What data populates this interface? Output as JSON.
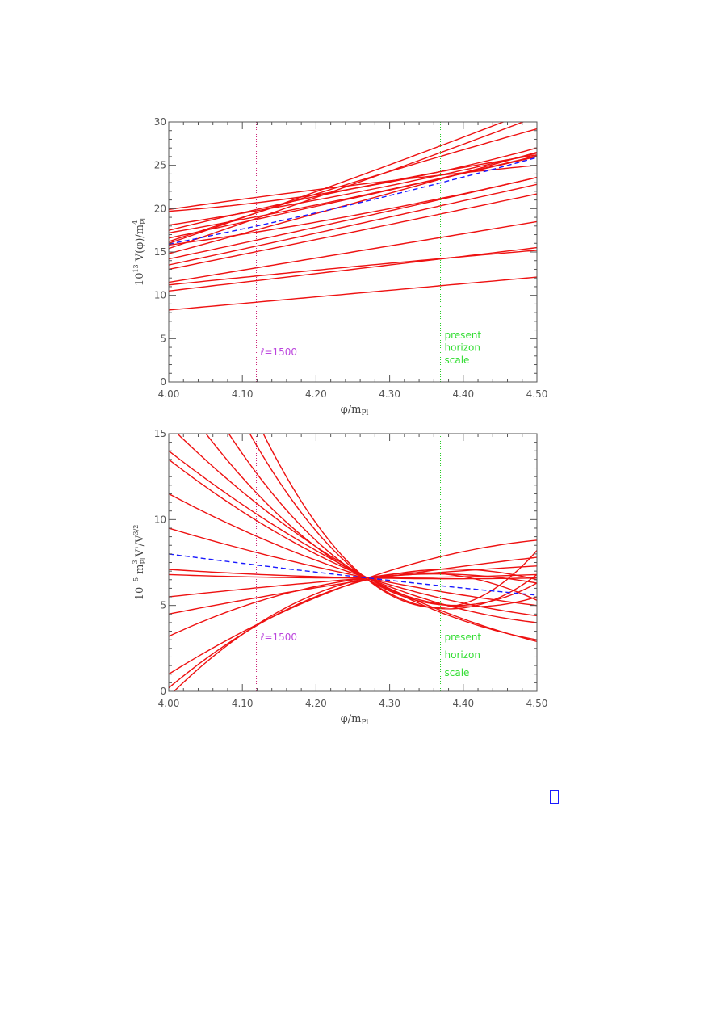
{
  "chart_data": [
    {
      "type": "line",
      "xlabel": "φ/m_Pl",
      "ylabel": "10^13 V(φ)/m_Pl^4",
      "xlim": [
        4.0,
        4.5
      ],
      "ylim": [
        0,
        30
      ],
      "xticks": [
        4.0,
        4.1,
        4.2,
        4.3,
        4.4,
        4.5
      ],
      "xtick_labels": [
        "4.00",
        "4.10",
        "4.20",
        "4.30",
        "4.40",
        "4.50"
      ],
      "yticks": [
        0,
        5,
        10,
        15,
        20,
        25,
        30
      ],
      "ytick_labels": [
        "0",
        "5",
        "10",
        "15",
        "20",
        "25",
        "30"
      ],
      "ylabel_parts": {
        "prefix": "10",
        "exp": "13",
        "mid": " V(",
        "phi": "φ",
        "post": ")/m",
        "sub": "Pl",
        "sup": "4"
      },
      "xlabel_parts": {
        "phi": "φ",
        "mid": "/m",
        "sub": "Pl"
      },
      "vlines": [
        {
          "x": 4.119,
          "color": "#cc2277",
          "style": "dotted",
          "label": "ℓ=1500",
          "label_color": "#bb44dd"
        },
        {
          "x": 4.369,
          "color": "#22cc22",
          "style": "dotted",
          "label_lines": [
            "present",
            "horizon",
            "scale"
          ],
          "label_color": "#33dd33"
        }
      ],
      "fiducial": {
        "color": "#1a1aff",
        "style": "dashed",
        "x": [
          4.0,
          4.25,
          4.5
        ],
        "y": [
          15.9,
          20.5,
          25.9
        ]
      },
      "curves_color": "#ee1111",
      "series": [
        {
          "x": [
            4.0,
            4.25,
            4.5
          ],
          "y": [
            8.3,
            10.2,
            12.1
          ]
        },
        {
          "x": [
            4.0,
            4.25,
            4.5
          ],
          "y": [
            10.5,
            13.0,
            15.5
          ]
        },
        {
          "x": [
            4.0,
            4.25,
            4.5
          ],
          "y": [
            11.2,
            13.3,
            15.2
          ]
        },
        {
          "x": [
            4.0,
            4.25,
            4.5
          ],
          "y": [
            11.5,
            15.0,
            18.5
          ]
        },
        {
          "x": [
            4.0,
            4.25,
            4.5
          ],
          "y": [
            13.0,
            17.3,
            21.7
          ]
        },
        {
          "x": [
            4.0,
            4.25,
            4.5
          ],
          "y": [
            13.5,
            18.1,
            22.8
          ]
        },
        {
          "x": [
            4.0,
            4.25,
            4.5
          ],
          "y": [
            14.2,
            18.8,
            23.6
          ]
        },
        {
          "x": [
            4.0,
            4.25,
            4.5
          ],
          "y": [
            15.8,
            19.2,
            23.6
          ]
        },
        {
          "x": [
            4.0,
            4.25,
            4.5
          ],
          "y": [
            16.6,
            21.2,
            26.0
          ]
        },
        {
          "x": [
            4.0,
            4.25,
            4.5
          ],
          "y": [
            17.2,
            21.3,
            26.1
          ]
        },
        {
          "x": [
            4.0,
            4.25,
            4.5
          ],
          "y": [
            18.1,
            21.8,
            26.4
          ]
        },
        {
          "x": [
            4.0,
            4.25,
            4.5
          ],
          "y": [
            19.7,
            22.3,
            27.0
          ]
        },
        {
          "x": [
            4.0,
            4.25,
            4.5
          ],
          "y": [
            19.9,
            22.7,
            25.0
          ]
        },
        {
          "x": [
            4.0,
            4.25,
            4.5
          ],
          "y": [
            14.8,
            20.6,
            26.5
          ]
        },
        {
          "x": [
            4.0,
            4.25,
            4.5
          ],
          "y": [
            15.4,
            22.8,
            30.6
          ]
        },
        {
          "x": [
            4.0,
            4.25,
            4.5
          ],
          "y": [
            16.2,
            23.0,
            29.2
          ]
        },
        {
          "x": [
            4.0,
            4.25,
            4.5
          ],
          "y": [
            17.5,
            22.3,
            26.2
          ]
        },
        {
          "x": [
            4.0,
            4.25,
            4.5
          ],
          "y": [
            16.0,
            23.5,
            31.5
          ]
        }
      ]
    },
    {
      "type": "line",
      "xlabel": "φ/m_Pl",
      "ylabel": "10^-5 m_Pl^3 V'/V^3/2",
      "xlim": [
        4.0,
        4.5
      ],
      "ylim": [
        0,
        15
      ],
      "xticks": [
        4.0,
        4.1,
        4.2,
        4.3,
        4.4,
        4.5
      ],
      "xtick_labels": [
        "4.00",
        "4.10",
        "4.20",
        "4.30",
        "4.40",
        "4.50"
      ],
      "yticks": [
        0,
        5,
        10,
        15
      ],
      "ytick_labels": [
        "0",
        "5",
        "10",
        "15"
      ],
      "ylabel_parts": {
        "prefix": "10",
        "exp": "−5",
        "m": " m",
        "sub": "Pl",
        "sup": "3",
        "rest": " V'/V",
        "sup2": "3/2"
      },
      "xlabel_parts": {
        "phi": "φ",
        "mid": "/m",
        "sub": "Pl"
      },
      "vlines": [
        {
          "x": 4.119,
          "color": "#cc2277",
          "style": "dotted",
          "label": "ℓ=1500",
          "label_color": "#bb44dd"
        },
        {
          "x": 4.369,
          "color": "#22cc22",
          "style": "dotted",
          "label_lines": [
            "present",
            "horizon",
            "scale"
          ],
          "label_color": "#33dd33"
        }
      ],
      "fiducial": {
        "color": "#1a1aff",
        "style": "dashed",
        "x": [
          4.0,
          4.27,
          4.5
        ],
        "y": [
          8.0,
          6.6,
          5.6
        ]
      },
      "curves_color": "#ee1111",
      "series": [
        {
          "x": [
            4.0,
            4.27,
            4.5
          ],
          "y": [
            -0.3,
            6.6,
            5.3
          ]
        },
        {
          "x": [
            4.0,
            4.27,
            4.5
          ],
          "y": [
            0.2,
            6.5,
            6.5
          ]
        },
        {
          "x": [
            4.0,
            4.27,
            4.5
          ],
          "y": [
            1.0,
            6.6,
            8.8
          ]
        },
        {
          "x": [
            4.0,
            4.27,
            4.5
          ],
          "y": [
            3.2,
            6.6,
            6.3
          ]
        },
        {
          "x": [
            4.0,
            4.27,
            4.5
          ],
          "y": [
            4.5,
            6.5,
            7.8
          ]
        },
        {
          "x": [
            4.0,
            4.27,
            4.5
          ],
          "y": [
            5.5,
            6.6,
            7.3
          ]
        },
        {
          "x": [
            4.0,
            4.27,
            4.5
          ],
          "y": [
            6.8,
            6.6,
            6.8
          ]
        },
        {
          "x": [
            4.0,
            4.27,
            4.5
          ],
          "y": [
            7.1,
            6.6,
            6.6
          ]
        },
        {
          "x": [
            4.0,
            4.27,
            4.5
          ],
          "y": [
            9.5,
            6.6,
            5.0
          ]
        },
        {
          "x": [
            4.0,
            4.27,
            4.5
          ],
          "y": [
            11.5,
            6.6,
            4.4
          ]
        },
        {
          "x": [
            4.0,
            4.27,
            4.5
          ],
          "y": [
            13.5,
            6.6,
            4.0
          ]
        },
        {
          "x": [
            4.0,
            4.27,
            4.5
          ],
          "y": [
            14.0,
            6.6,
            2.9
          ]
        },
        {
          "x": [
            4.0,
            4.27,
            4.5
          ],
          "y": [
            15.5,
            6.6,
            3.0
          ]
        },
        {
          "x": [
            4.0,
            4.27,
            4.5
          ],
          "y": [
            18.0,
            6.5,
            5.5
          ]
        },
        {
          "x": [
            4.0,
            4.27,
            4.5
          ],
          "y": [
            21.0,
            6.5,
            6.3
          ]
        },
        {
          "x": [
            4.0,
            4.27,
            4.5
          ],
          "y": [
            25.0,
            6.5,
            6.8
          ]
        },
        {
          "x": [
            4.0,
            4.27,
            4.5
          ],
          "y": [
            29.0,
            6.5,
            8.2
          ]
        }
      ]
    }
  ]
}
